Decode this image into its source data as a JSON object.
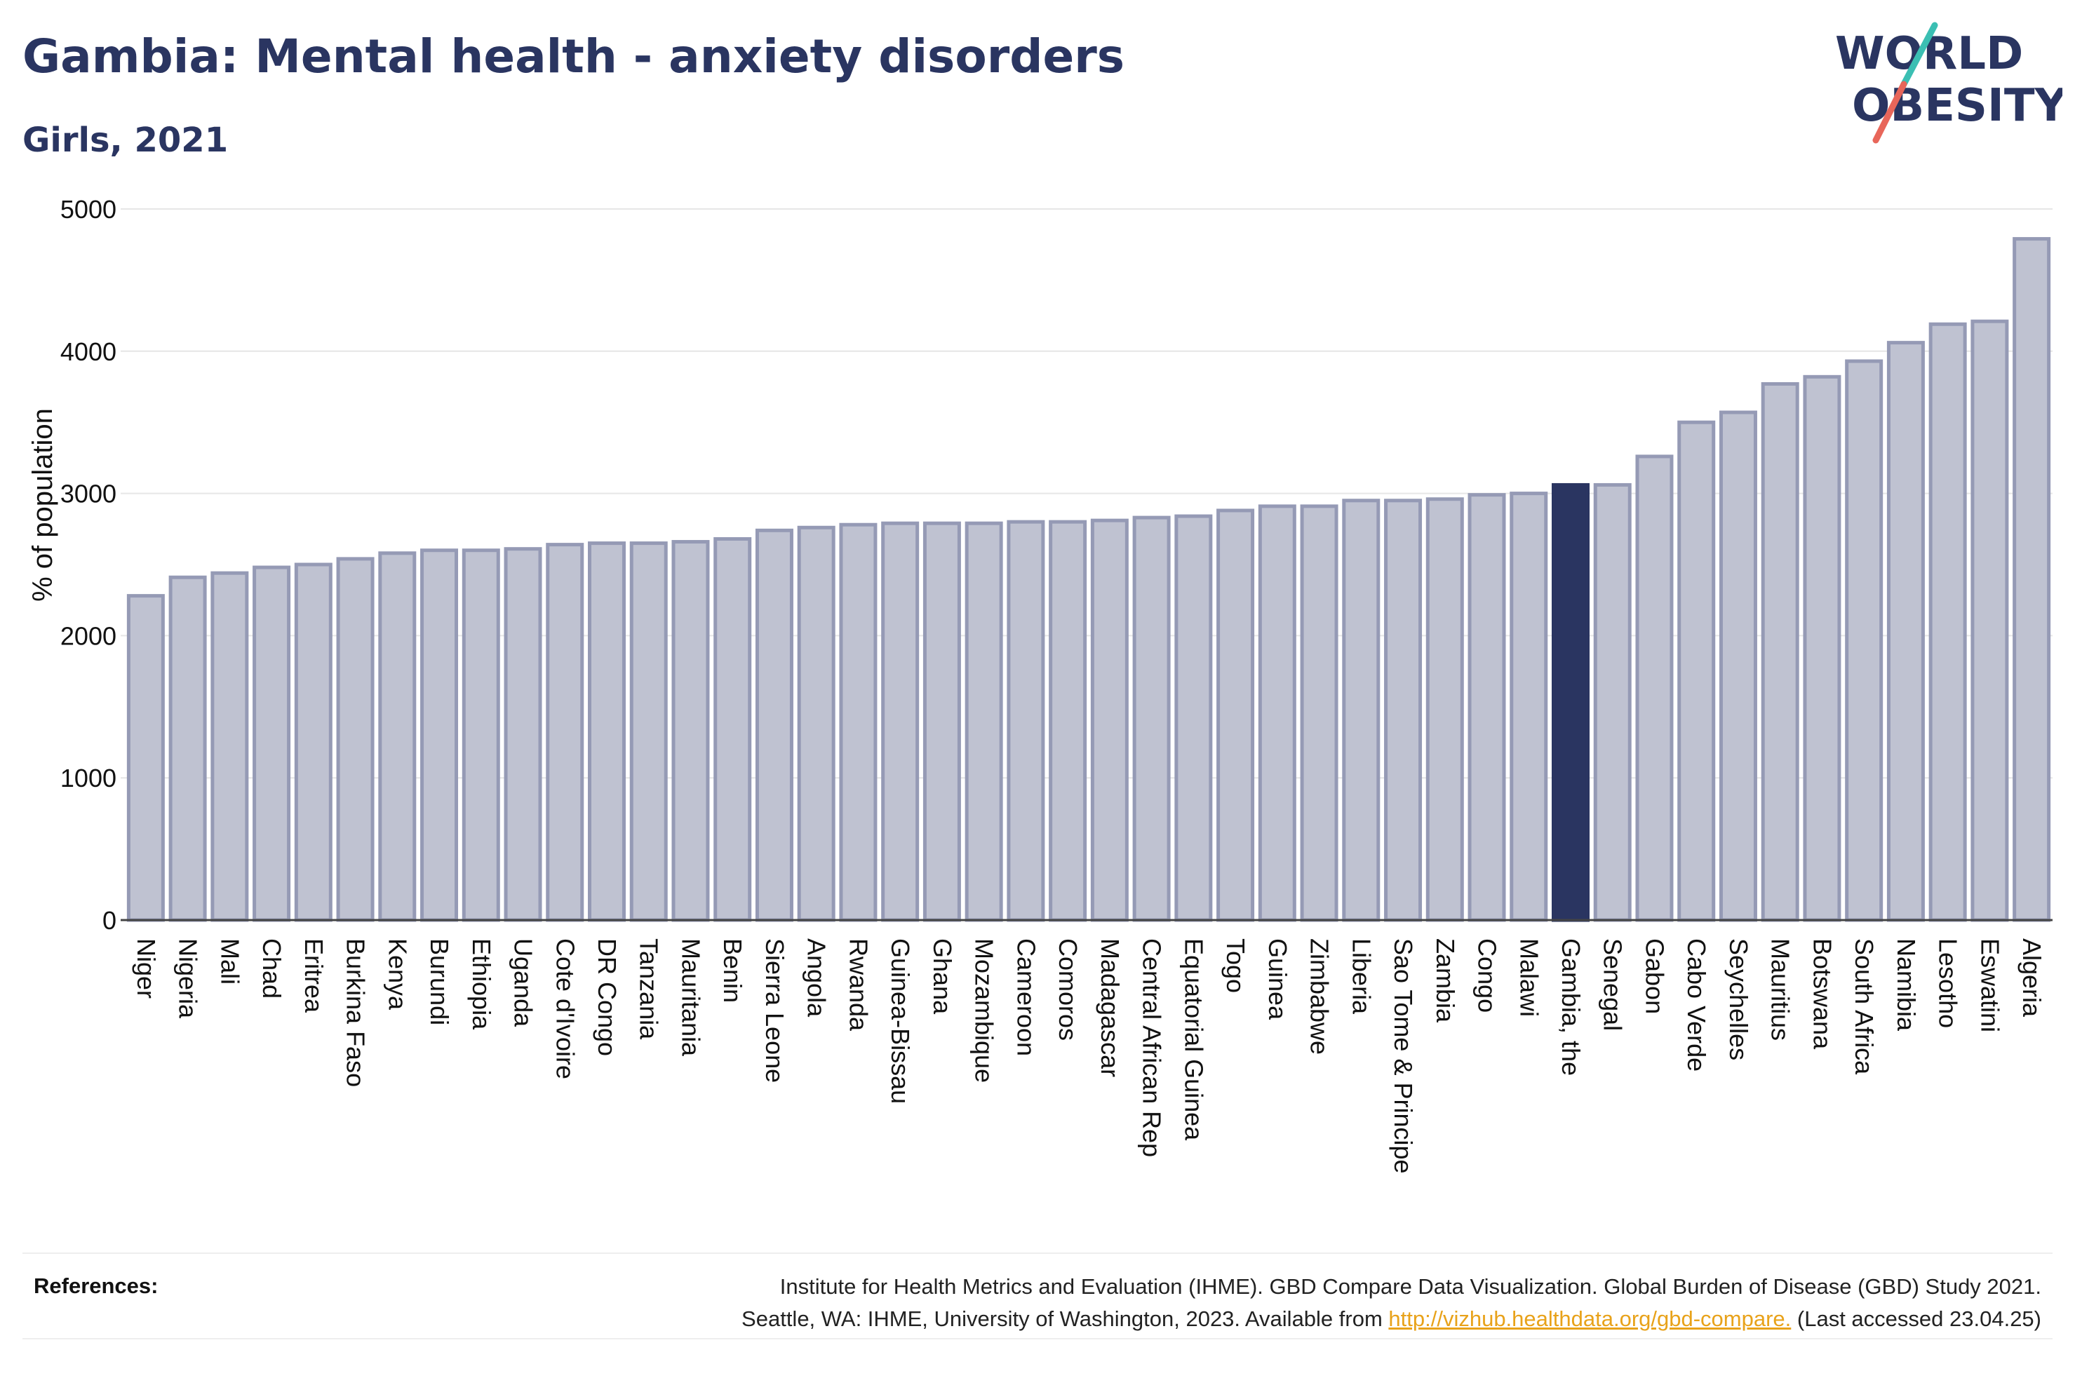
{
  "header": {
    "title": "Gambia: Mental health - anxiety disorders",
    "subtitle": "Girls, 2021"
  },
  "logo": {
    "line1": "WORLD",
    "line2": "OBESITY",
    "colors": {
      "text": "#2a3561",
      "slash_top": "#3bbfb3",
      "slash_bottom": "#e8665a"
    }
  },
  "colors": {
    "bar_default": "#bfc2d1",
    "bar_default_stroke": "#959ab5",
    "bar_highlight": "#2a3561",
    "grid": "#e6e6e6",
    "axis": "#444444"
  },
  "chart_data": {
    "type": "bar",
    "ylabel": "% of population",
    "ylim": [
      0,
      5000
    ],
    "yticks": [
      0,
      1000,
      2000,
      3000,
      4000,
      5000
    ],
    "grid": true,
    "highlight": "Gambia, the",
    "categories": [
      "Niger",
      "Nigeria",
      "Mali",
      "Chad",
      "Eritrea",
      "Burkina Faso",
      "Kenya",
      "Burundi",
      "Ethiopia",
      "Uganda",
      "Cote d'Ivoire",
      "DR Congo",
      "Tanzania",
      "Mauritania",
      "Benin",
      "Sierra Leone",
      "Angola",
      "Rwanda",
      "Guinea-Bissau",
      "Ghana",
      "Mozambique",
      "Cameroon",
      "Comoros",
      "Madagascar",
      "Central African Rep",
      "Equatorial Guinea",
      "Togo",
      "Guinea",
      "Zimbabwe",
      "Liberia",
      "Sao Tome & Principe",
      "Zambia",
      "Congo",
      "Malawi",
      "Gambia, the",
      "Senegal",
      "Gabon",
      "Cabo Verde",
      "Seychelles",
      "Mauritius",
      "Botswana",
      "South Africa",
      "Namibia",
      "Lesotho",
      "Eswatini",
      "Algeria"
    ],
    "values": [
      2280,
      2410,
      2440,
      2480,
      2500,
      2540,
      2580,
      2600,
      2600,
      2610,
      2640,
      2650,
      2650,
      2660,
      2680,
      2740,
      2760,
      2780,
      2790,
      2790,
      2790,
      2800,
      2800,
      2810,
      2830,
      2840,
      2880,
      2910,
      2910,
      2950,
      2950,
      2960,
      2990,
      3000,
      3060,
      3060,
      3260,
      3500,
      3570,
      3770,
      3820,
      3930,
      4060,
      4190,
      4210,
      4790
    ]
  },
  "references": {
    "label": "References:",
    "line1": "Institute for Health Metrics and Evaluation (IHME). GBD Compare Data Visualization. Global Burden of Disease (GBD) Study 2021.",
    "line2_prefix": "Seattle, WA: IHME, University of Washington, 2023. Available from ",
    "link": "http://vizhub.healthdata.org/gbd-compare.",
    "line2_suffix": " (Last accessed 23.04.25)"
  }
}
